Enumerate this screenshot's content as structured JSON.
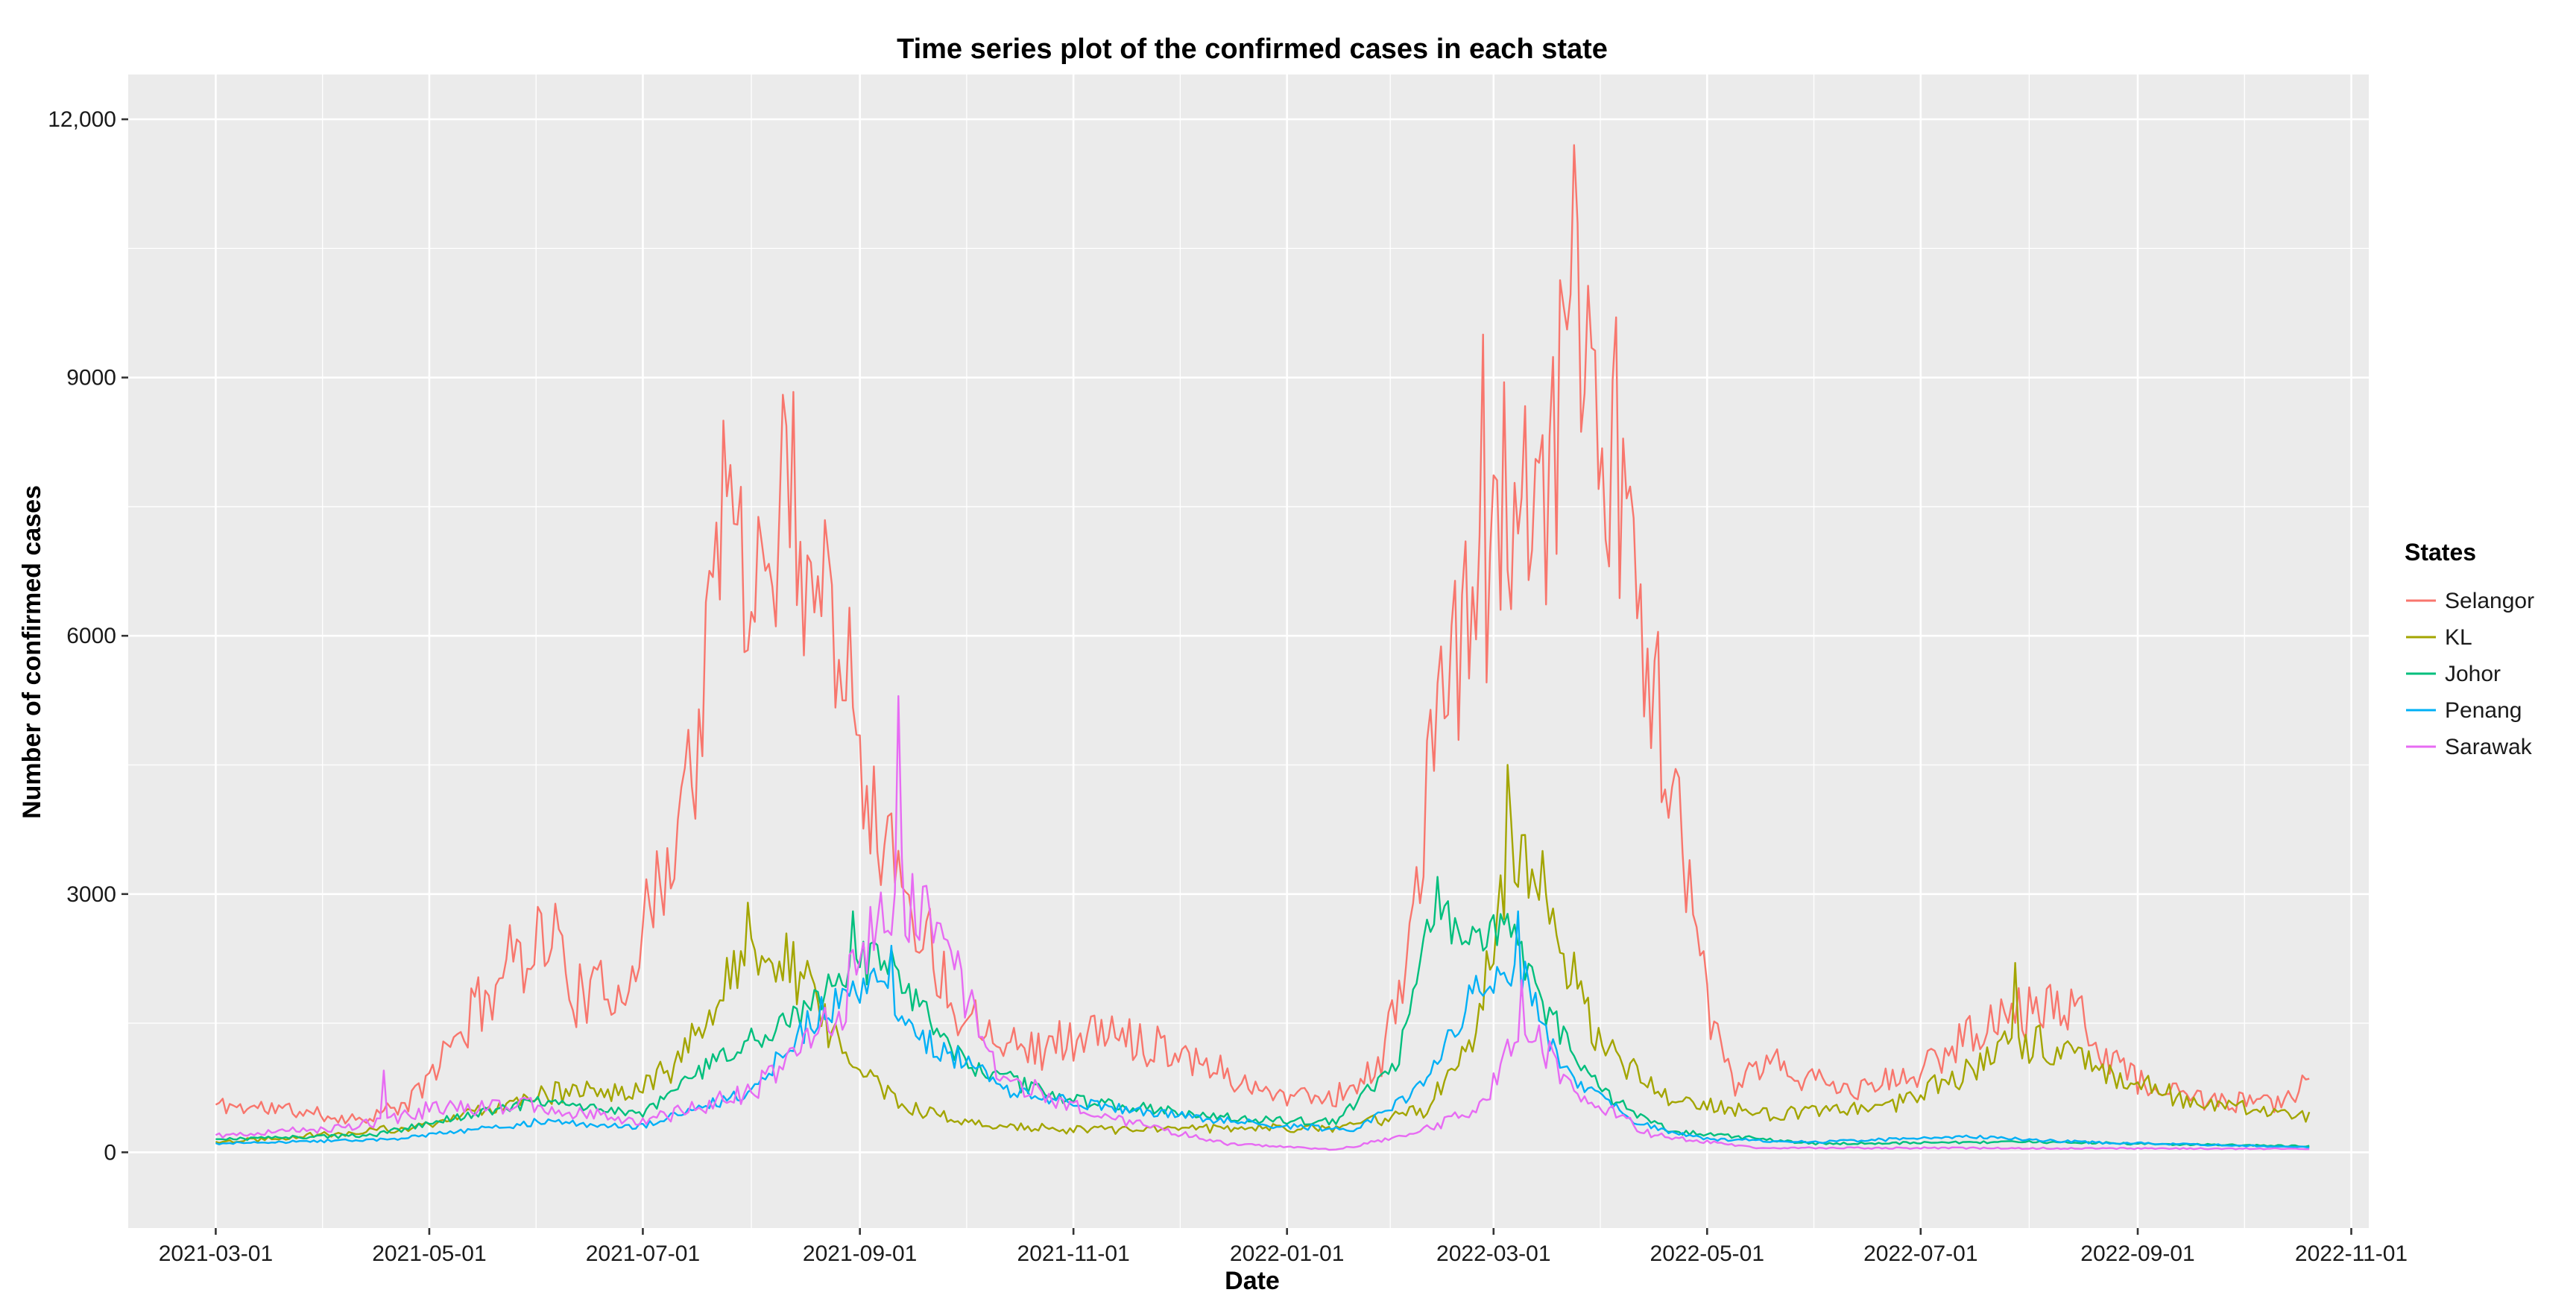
{
  "chart_data": {
    "type": "line",
    "title": "Time series plot of the confirmed cases in each state",
    "xlabel": "Date",
    "ylabel": "Number of confirmed cases",
    "xlim": [
      "2021-02-04",
      "2022-11-06"
    ],
    "ylim": [
      -880,
      12520
    ],
    "x_ticks": [
      "2021-03-01",
      "2021-05-01",
      "2021-07-01",
      "2021-09-01",
      "2021-11-01",
      "2022-01-01",
      "2022-03-01",
      "2022-05-01",
      "2022-07-01",
      "2022-09-01",
      "2022-11-01"
    ],
    "y_ticks": [
      0,
      3000,
      6000,
      9000,
      12000
    ],
    "y_tick_labels": [
      "0",
      "3000",
      "6000",
      "9000",
      "12,000"
    ],
    "grid": true,
    "legend": {
      "title": "States",
      "position": "right"
    },
    "date_start": "2021-03-01",
    "date_end": "2022-10-20",
    "series": [
      {
        "name": "Selangor",
        "color": "#F8766D",
        "keypoints": [
          [
            "2021-03-01",
            550
          ],
          [
            "2021-03-20",
            500
          ],
          [
            "2021-04-10",
            380
          ],
          [
            "2021-04-25",
            550
          ],
          [
            "2021-05-10",
            1400
          ],
          [
            "2021-05-25",
            2300
          ],
          [
            "2021-06-05",
            2600
          ],
          [
            "2021-06-12",
            1800
          ],
          [
            "2021-06-25",
            1900
          ],
          [
            "2021-07-05",
            3000
          ],
          [
            "2021-07-15",
            4500
          ],
          [
            "2021-07-26",
            7500
          ],
          [
            "2021-08-05",
            6500
          ],
          [
            "2021-08-11",
            8000
          ],
          [
            "2021-08-20",
            6600
          ],
          [
            "2021-08-28",
            6200
          ],
          [
            "2021-09-05",
            3900
          ],
          [
            "2021-09-15",
            3000
          ],
          [
            "2021-09-28",
            1700
          ],
          [
            "2021-10-20",
            1200
          ],
          [
            "2021-11-10",
            1400
          ],
          [
            "2021-12-01",
            1200
          ],
          [
            "2021-12-25",
            700
          ],
          [
            "2022-01-15",
            650
          ],
          [
            "2022-01-28",
            1000
          ],
          [
            "2022-02-05",
            2500
          ],
          [
            "2022-02-15",
            5500
          ],
          [
            "2022-02-25",
            6500
          ],
          [
            "2022-03-05",
            7500
          ],
          [
            "2022-03-12",
            7000
          ],
          [
            "2022-03-18",
            7800
          ],
          [
            "2022-03-24",
            10500
          ],
          [
            "2022-04-01",
            8500
          ],
          [
            "2022-04-08",
            7000
          ],
          [
            "2022-04-14",
            6000
          ],
          [
            "2022-04-22",
            4000
          ],
          [
            "2022-05-01",
            1700
          ],
          [
            "2022-05-08",
            800
          ],
          [
            "2022-05-20",
            1000
          ],
          [
            "2022-06-10",
            700
          ],
          [
            "2022-06-30",
            900
          ],
          [
            "2022-07-15",
            1400
          ],
          [
            "2022-08-01",
            1700
          ],
          [
            "2022-08-15",
            1600
          ],
          [
            "2022-09-01",
            800
          ],
          [
            "2022-09-20",
            600
          ],
          [
            "2022-10-10",
            550
          ],
          [
            "2022-10-20",
            850
          ]
        ],
        "spikes": [
          [
            "2021-07-24",
            8500
          ],
          [
            "2021-08-10",
            8800
          ],
          [
            "2022-02-26",
            9500
          ],
          [
            "2022-03-24",
            11700
          ],
          [
            "2022-04-05",
            9700
          ],
          [
            "2022-04-12",
            6600
          ]
        ],
        "noise": 0.2,
        "seed": 11
      },
      {
        "name": "KL",
        "color": "#A3A500",
        "keypoints": [
          [
            "2021-03-01",
            120
          ],
          [
            "2021-05-01",
            300
          ],
          [
            "2021-06-01",
            700
          ],
          [
            "2021-06-25",
            700
          ],
          [
            "2021-07-10",
            1000
          ],
          [
            "2021-07-28",
            2100
          ],
          [
            "2021-08-12",
            2200
          ],
          [
            "2021-08-25",
            1400
          ],
          [
            "2021-09-10",
            600
          ],
          [
            "2021-10-01",
            350
          ],
          [
            "2021-11-01",
            260
          ],
          [
            "2021-12-15",
            280
          ],
          [
            "2022-01-15",
            280
          ],
          [
            "2022-02-10",
            500
          ],
          [
            "2022-02-25",
            1600
          ],
          [
            "2022-03-05",
            3500
          ],
          [
            "2022-03-15",
            2800
          ],
          [
            "2022-04-01",
            1200
          ],
          [
            "2022-04-20",
            600
          ],
          [
            "2022-05-20",
            450
          ],
          [
            "2022-06-20",
            500
          ],
          [
            "2022-07-10",
            850
          ],
          [
            "2022-07-25",
            1300
          ],
          [
            "2022-08-10",
            1200
          ],
          [
            "2022-08-25",
            900
          ],
          [
            "2022-09-15",
            600
          ],
          [
            "2022-10-20",
            400
          ]
        ],
        "spikes": [
          [
            "2021-07-31",
            2900
          ],
          [
            "2022-03-05",
            4500
          ],
          [
            "2022-03-15",
            3500
          ],
          [
            "2022-07-28",
            2200
          ]
        ],
        "noise": 0.18,
        "seed": 22
      },
      {
        "name": "Johor",
        "color": "#00BF7D",
        "keypoints": [
          [
            "2021-03-01",
            150
          ],
          [
            "2021-04-15",
            200
          ],
          [
            "2021-06-01",
            600
          ],
          [
            "2021-07-01",
            450
          ],
          [
            "2021-07-20",
            1000
          ],
          [
            "2021-08-10",
            1500
          ],
          [
            "2021-09-01",
            2200
          ],
          [
            "2021-09-10",
            2100
          ],
          [
            "2021-10-01",
            1000
          ],
          [
            "2021-11-01",
            600
          ],
          [
            "2021-12-15",
            400
          ],
          [
            "2022-01-15",
            350
          ],
          [
            "2022-02-01",
            1000
          ],
          [
            "2022-02-12",
            2800
          ],
          [
            "2022-02-22",
            2500
          ],
          [
            "2022-03-05",
            2600
          ],
          [
            "2022-03-15",
            1700
          ],
          [
            "2022-04-01",
            700
          ],
          [
            "2022-04-20",
            250
          ],
          [
            "2022-06-01",
            100
          ],
          [
            "2022-08-01",
            120
          ],
          [
            "2022-10-20",
            70
          ]
        ],
        "spikes": [
          [
            "2021-08-30",
            2800
          ],
          [
            "2022-02-13",
            3200
          ]
        ],
        "noise": 0.12,
        "seed": 33
      },
      {
        "name": "Penang",
        "color": "#00B0F6",
        "keypoints": [
          [
            "2021-03-01",
            100
          ],
          [
            "2021-04-20",
            150
          ],
          [
            "2021-06-01",
            350
          ],
          [
            "2021-07-01",
            300
          ],
          [
            "2021-08-01",
            700
          ],
          [
            "2021-08-20",
            1600
          ],
          [
            "2021-09-05",
            2000
          ],
          [
            "2021-09-20",
            1300
          ],
          [
            "2021-10-15",
            700
          ],
          [
            "2021-11-15",
            500
          ],
          [
            "2021-12-20",
            350
          ],
          [
            "2022-01-20",
            250
          ],
          [
            "2022-02-10",
            800
          ],
          [
            "2022-02-25",
            2000
          ],
          [
            "2022-03-08",
            2200
          ],
          [
            "2022-03-20",
            1000
          ],
          [
            "2022-04-10",
            350
          ],
          [
            "2022-05-01",
            150
          ],
          [
            "2022-06-01",
            120
          ],
          [
            "2022-07-15",
            180
          ],
          [
            "2022-08-15",
            120
          ],
          [
            "2022-10-20",
            60
          ]
        ],
        "spikes": [
          [
            "2021-09-10",
            2400
          ],
          [
            "2022-03-08",
            2800
          ]
        ],
        "noise": 0.12,
        "seed": 44
      },
      {
        "name": "Sarawak",
        "color": "#E76BF3",
        "keypoints": [
          [
            "2021-03-01",
            200
          ],
          [
            "2021-04-10",
            300
          ],
          [
            "2021-05-01",
            500
          ],
          [
            "2021-06-01",
            550
          ],
          [
            "2021-07-01",
            350
          ],
          [
            "2021-08-01",
            700
          ],
          [
            "2021-08-25",
            1600
          ],
          [
            "2021-09-10",
            3000
          ],
          [
            "2021-09-25",
            2500
          ],
          [
            "2021-10-10",
            900
          ],
          [
            "2021-11-10",
            400
          ],
          [
            "2021-12-15",
            100
          ],
          [
            "2022-01-15",
            30
          ],
          [
            "2022-02-05",
            200
          ],
          [
            "2022-02-25",
            500
          ],
          [
            "2022-03-10",
            1500
          ],
          [
            "2022-03-25",
            700
          ],
          [
            "2022-04-15",
            200
          ],
          [
            "2022-05-15",
            50
          ],
          [
            "2022-07-01",
            50
          ],
          [
            "2022-10-20",
            40
          ]
        ],
        "spikes": [
          [
            "2021-04-18",
            950
          ],
          [
            "2021-09-12",
            5300
          ],
          [
            "2022-03-09",
            2000
          ]
        ],
        "noise": 0.18,
        "seed": 55
      }
    ]
  }
}
